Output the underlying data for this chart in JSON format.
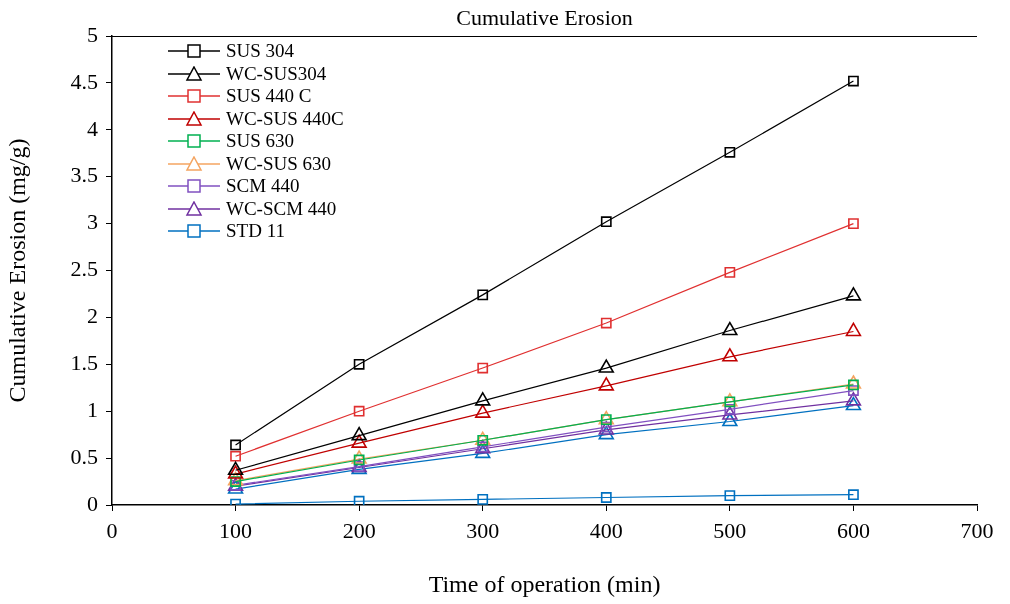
{
  "chart_data": {
    "type": "line",
    "title": "Cumulative Erosion",
    "xlabel": "Time of operation (min)",
    "ylabel": "Cumulative Erosion (mg/g)",
    "x": [
      100,
      200,
      300,
      400,
      500,
      600
    ],
    "xlim": [
      0,
      700
    ],
    "xticks": [
      0,
      100,
      200,
      300,
      400,
      500,
      600,
      700
    ],
    "ylim": [
      0,
      5
    ],
    "yticks": [
      0,
      0.5,
      1,
      1.5,
      2,
      2.5,
      3,
      3.5,
      4,
      4.5,
      5
    ],
    "grid": false,
    "legend": "top left",
    "line_style": "solid",
    "series": [
      {
        "name": "SUS 304",
        "color": "#000000",
        "marker": "square",
        "values": [
          0.64,
          1.5,
          2.24,
          3.02,
          3.76,
          4.52
        ]
      },
      {
        "name": "WC-SUS304",
        "color": "#000000",
        "marker": "triangle",
        "values": [
          0.37,
          0.74,
          1.11,
          1.46,
          1.86,
          2.23
        ]
      },
      {
        "name": "SUS 440 C",
        "color": "#e03030",
        "marker": "square",
        "values": [
          0.52,
          1.0,
          1.46,
          1.94,
          2.48,
          3.0
        ]
      },
      {
        "name": "WC-SUS 440C",
        "color": "#c00000",
        "marker": "triangle",
        "values": [
          0.33,
          0.66,
          0.98,
          1.27,
          1.58,
          1.85
        ]
      },
      {
        "name": "SUS 630",
        "color": "#00b050",
        "marker": "square",
        "values": [
          0.25,
          0.48,
          0.69,
          0.91,
          1.1,
          1.28
        ]
      },
      {
        "name": "WC-SUS 630",
        "color": "#f4a460",
        "marker": "triangle",
        "values": [
          0.26,
          0.49,
          0.69,
          0.91,
          1.1,
          1.29
        ]
      },
      {
        "name": "SCM 440",
        "color": "#8050c0",
        "marker": "square",
        "values": [
          0.21,
          0.41,
          0.62,
          0.83,
          1.02,
          1.22
        ]
      },
      {
        "name": "WC-SCM 440",
        "color": "#7030a0",
        "marker": "triangle",
        "values": [
          0.2,
          0.4,
          0.6,
          0.8,
          0.96,
          1.11
        ]
      },
      {
        "name": "STD 11",
        "color": "#0070c0",
        "marker": "square",
        "values": [
          0.01,
          0.04,
          0.06,
          0.08,
          0.1,
          0.11
        ]
      },
      {
        "color": "#0070c0",
        "marker": "triangle",
        "values": [
          0.17,
          0.38,
          0.55,
          0.75,
          0.89,
          1.06
        ]
      }
    ]
  }
}
